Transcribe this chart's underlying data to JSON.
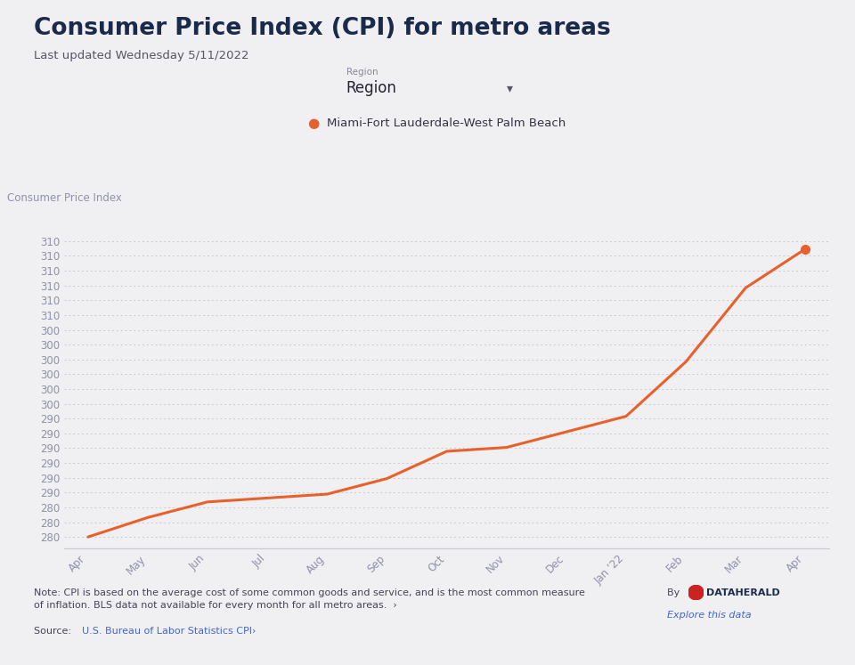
{
  "title": "Consumer Price Index (CPI) for metro areas",
  "subtitle": "Last updated Wednesday 5/11/2022",
  "region_label": "Region",
  "region_value": "Region",
  "legend_label": "Miami-Fort Lauderdale-West Palm Beach",
  "ylabel": "Consumer Price Index",
  "x_labels": [
    "Apr",
    "May",
    "Jun",
    "Jul",
    "Aug",
    "Sep",
    "Oct",
    "Nov",
    "Dec",
    "Jan ’22",
    "Feb",
    "Mar",
    "Apr"
  ],
  "data_points": [
    [
      0,
      280.0
    ],
    [
      1,
      282.5
    ],
    [
      2,
      284.5
    ],
    [
      3,
      285.0
    ],
    [
      4,
      285.5
    ],
    [
      5,
      287.5
    ],
    [
      6,
      291.0
    ],
    [
      7,
      291.5
    ],
    [
      8,
      293.5
    ],
    [
      9,
      295.5
    ],
    [
      10,
      302.5
    ],
    [
      11,
      312.0
    ],
    [
      12,
      317.0
    ]
  ],
  "line_color": "#E8612C",
  "marker_color": "#E8612C",
  "background_color": "#F0F0F2",
  "grid_color": "#C8C8D8",
  "axis_color": "#C8C8D8",
  "tick_label_color": "#9090AA",
  "title_color": "#1a2a4a",
  "ylabel_color": "#9090AA",
  "note_text": "Note: CPI is based on the average cost of some common goods and service, and is the most common measure\nof inflation. BLS data not available for every month for all metro areas.  ›",
  "source_label": "Source:",
  "source_link": "U.S. Bureau of Labor Statistics CPI›",
  "ytick_positions": [
    280.0,
    281.9,
    283.8,
    285.7,
    287.6,
    289.5,
    291.4,
    293.3,
    295.2,
    297.1,
    299.0,
    300.9,
    302.8,
    304.7,
    306.6,
    308.5,
    310.4,
    312.3,
    314.2,
    316.1,
    318.0
  ],
  "ytick_labels": [
    "280",
    "280",
    "280",
    "290",
    "290",
    "290",
    "290",
    "290",
    "290",
    "300",
    "300",
    "300",
    "300",
    "300",
    "300",
    "310",
    "310",
    "310",
    "310",
    "310",
    "310"
  ],
  "ylim_min": 278.5,
  "ylim_max": 319.5,
  "xlim_min": -0.4,
  "xlim_max": 12.4
}
